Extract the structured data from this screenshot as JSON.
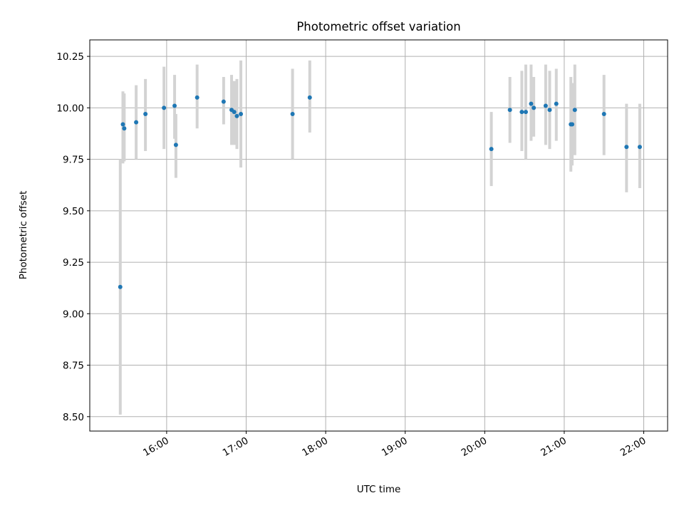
{
  "chart_data": {
    "type": "scatter",
    "title": "Photometric offset variation",
    "xlabel": "UTC time",
    "ylabel": "Photometric offset",
    "xlim": [
      "15:02",
      "22:18"
    ],
    "ylim": [
      8.43,
      10.33
    ],
    "grid": true,
    "x_ticks": [
      "16:00",
      "17:00",
      "18:00",
      "19:00",
      "20:00",
      "21:00",
      "22:00"
    ],
    "y_ticks": [
      "8.50",
      "8.75",
      "9.00",
      "9.25",
      "9.50",
      "9.75",
      "10.00",
      "10.25"
    ],
    "points": [
      {
        "x": "15:25",
        "y": 9.13,
        "ylow": 8.51,
        "yhigh": 9.75
      },
      {
        "x": "15:27",
        "y": 9.92,
        "ylow": 9.73,
        "yhigh": 10.08
      },
      {
        "x": "15:28",
        "y": 9.9,
        "ylow": 9.74,
        "yhigh": 10.07
      },
      {
        "x": "15:37",
        "y": 9.93,
        "ylow": 9.75,
        "yhigh": 10.11
      },
      {
        "x": "15:44",
        "y": 9.97,
        "ylow": 9.79,
        "yhigh": 10.14
      },
      {
        "x": "15:58",
        "y": 10.0,
        "ylow": 9.8,
        "yhigh": 10.2
      },
      {
        "x": "16:06",
        "y": 10.01,
        "ylow": 9.85,
        "yhigh": 10.16
      },
      {
        "x": "16:07",
        "y": 9.82,
        "ylow": 9.66,
        "yhigh": 9.97
      },
      {
        "x": "16:23",
        "y": 10.05,
        "ylow": 9.9,
        "yhigh": 10.21
      },
      {
        "x": "16:43",
        "y": 10.03,
        "ylow": 9.92,
        "yhigh": 10.15
      },
      {
        "x": "16:49",
        "y": 9.99,
        "ylow": 9.82,
        "yhigh": 10.16
      },
      {
        "x": "16:51",
        "y": 9.98,
        "ylow": 9.82,
        "yhigh": 10.13
      },
      {
        "x": "16:53",
        "y": 9.96,
        "ylow": 9.8,
        "yhigh": 10.14
      },
      {
        "x": "16:56",
        "y": 9.97,
        "ylow": 9.71,
        "yhigh": 10.23
      },
      {
        "x": "17:35",
        "y": 9.97,
        "ylow": 9.75,
        "yhigh": 10.19
      },
      {
        "x": "17:48",
        "y": 10.05,
        "ylow": 9.88,
        "yhigh": 10.23
      },
      {
        "x": "20:05",
        "y": 9.8,
        "ylow": 9.62,
        "yhigh": 9.98
      },
      {
        "x": "20:19",
        "y": 9.99,
        "ylow": 9.83,
        "yhigh": 10.15
      },
      {
        "x": "20:28",
        "y": 9.98,
        "ylow": 9.79,
        "yhigh": 10.18
      },
      {
        "x": "20:31",
        "y": 9.98,
        "ylow": 9.75,
        "yhigh": 10.21
      },
      {
        "x": "20:35",
        "y": 10.02,
        "ylow": 9.84,
        "yhigh": 10.21
      },
      {
        "x": "20:37",
        "y": 10.0,
        "ylow": 9.86,
        "yhigh": 10.15
      },
      {
        "x": "20:46",
        "y": 10.01,
        "ylow": 9.82,
        "yhigh": 10.21
      },
      {
        "x": "20:49",
        "y": 9.99,
        "ylow": 9.8,
        "yhigh": 10.18
      },
      {
        "x": "20:54",
        "y": 10.02,
        "ylow": 9.84,
        "yhigh": 10.19
      },
      {
        "x": "21:05",
        "y": 9.92,
        "ylow": 9.69,
        "yhigh": 10.15
      },
      {
        "x": "21:06",
        "y": 9.92,
        "ylow": 9.72,
        "yhigh": 10.12
      },
      {
        "x": "21:08",
        "y": 9.99,
        "ylow": 9.77,
        "yhigh": 10.21
      },
      {
        "x": "21:30",
        "y": 9.97,
        "ylow": 9.77,
        "yhigh": 10.16
      },
      {
        "x": "21:47",
        "y": 9.81,
        "ylow": 9.59,
        "yhigh": 10.02
      },
      {
        "x": "21:57",
        "y": 9.81,
        "ylow": 9.61,
        "yhigh": 10.02
      }
    ],
    "colors": {
      "point": "#1f77b4",
      "error_bar": "#d3d3d3",
      "grid": "#b0b0b0"
    }
  }
}
